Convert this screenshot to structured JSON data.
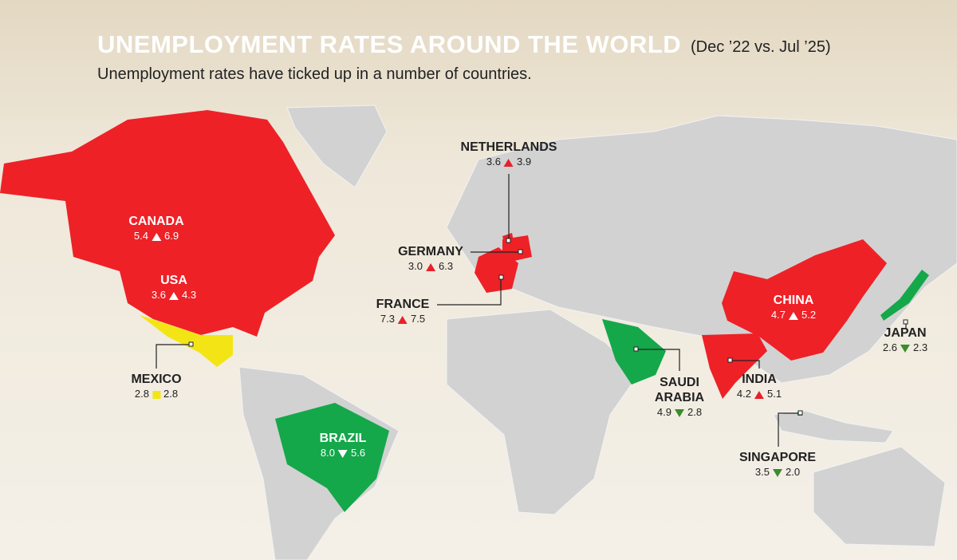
{
  "title": "UNEMPLOYMENT RATES AROUND THE WORLD",
  "period": "(Dec ’22 vs. Jul ’25)",
  "subtitle": "Unemployment rates have ticked up in a number of countries.",
  "countries": [
    {
      "name": "NETHERLANDS",
      "before": "3.6",
      "after": "3.9"
    },
    {
      "name": "CANADA",
      "before": "5.4",
      "after": "6.9"
    },
    {
      "name": "GERMANY",
      "before": "3.0",
      "after": "6.3"
    },
    {
      "name": "USA",
      "before": "3.6",
      "after": "4.3"
    },
    {
      "name": "FRANCE",
      "before": "7.3",
      "after": "7.5"
    },
    {
      "name": "CHINA",
      "before": "4.7",
      "after": "5.2"
    },
    {
      "name": "JAPAN",
      "before": "2.6",
      "after": "2.3"
    },
    {
      "name": "SAUDI ARABIA",
      "before": "4.9",
      "after": "2.8"
    },
    {
      "name": "MEXICO",
      "before": "2.8",
      "after": "2.8"
    },
    {
      "name": "INDIA",
      "before": "4.2",
      "after": "5.1"
    },
    {
      "name": "BRAZIL",
      "before": "8.0",
      "after": "5.6"
    },
    {
      "name": "SINGAPORE",
      "before": "3.5",
      "after": "2.0"
    }
  ]
}
